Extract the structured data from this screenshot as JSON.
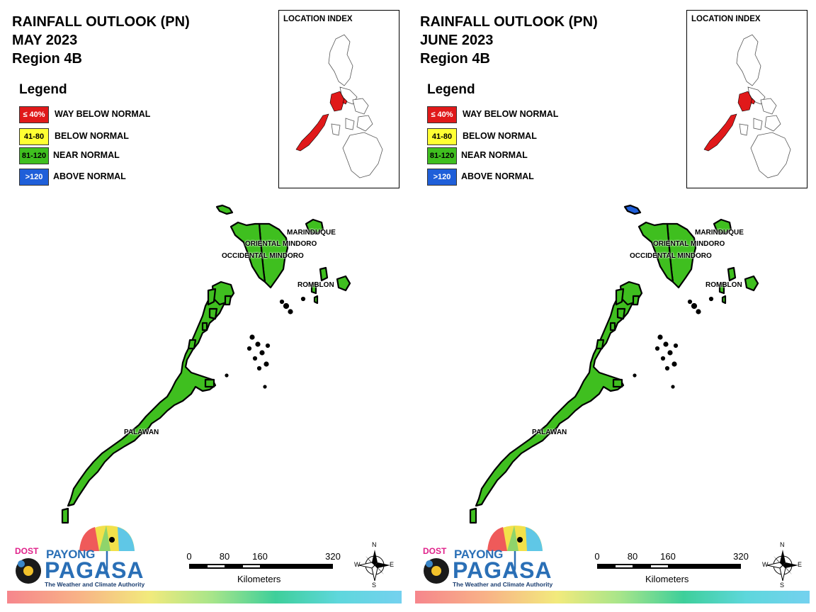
{
  "panels": [
    {
      "title_line1": "RAINFALL OUTLOOK (PN)",
      "title_line2": "MAY 2023",
      "title_line3": "Region 4B",
      "inset_title": "LOCATION INDEX",
      "provinces": {
        "marinduque": "MARINDUQUE",
        "oriental_mindoro": "ORIENTAL MINDORO",
        "occidental_mindoro": "OCCIDENTAL MINDORO",
        "romblon": "ROMBLON",
        "palawan": "PALAWAN"
      },
      "province_categories": {
        "marinduque": "near_normal",
        "oriental_mindoro": "near_normal",
        "occidental_mindoro": "near_normal",
        "romblon": "near_normal",
        "palawan": "near_normal",
        "lubang_island": "near_normal"
      }
    },
    {
      "title_line1": "RAINFALL OUTLOOK (PN)",
      "title_line2": "JUNE 2023",
      "title_line3": "Region 4B",
      "inset_title": "LOCATION INDEX",
      "provinces": {
        "marinduque": "MARINDUQUE",
        "oriental_mindoro": "ORIENTAL MINDORO",
        "occidental_mindoro": "OCCIDENTAL MINDORO",
        "romblon": "ROMBLON",
        "palawan": "PALAWAN"
      },
      "province_categories": {
        "marinduque": "near_normal",
        "oriental_mindoro": "near_normal",
        "occidental_mindoro": "near_normal",
        "romblon": "near_normal",
        "palawan": "near_normal",
        "lubang_island": "above_normal"
      }
    }
  ],
  "legend": {
    "title": "Legend",
    "items": [
      {
        "range": "≤ 40%",
        "label": "WAY BELOW NORMAL",
        "color": "#e0191a",
        "text_color": "#ffffff"
      },
      {
        "range": "41-80",
        "label": "BELOW NORMAL",
        "color": "#ffff33",
        "text_color": "#000000"
      },
      {
        "range": "81-120",
        "label": "NEAR NORMAL",
        "color": "#3fbf1f",
        "text_color": "#000000"
      },
      {
        "range": ">120",
        "label": "ABOVE NORMAL",
        "color": "#1f5fd9",
        "text_color": "#ffffff"
      }
    ]
  },
  "category_colors": {
    "way_below_normal": "#e0191a",
    "below_normal": "#ffff33",
    "near_normal": "#3fbf1f",
    "above_normal": "#1f5fd9"
  },
  "scale_bar": {
    "ticks": [
      "0",
      "80",
      "160",
      "320"
    ],
    "unit": "Kilometers"
  },
  "compass": {
    "n": "N",
    "s": "S",
    "e": "E",
    "w": "W"
  },
  "logo": {
    "dost": "DOST",
    "payong": "PAYONG",
    "pagasa": "PAGASA",
    "tagline": "The Weather and Climate Authority"
  },
  "colors": {
    "highlight_region": "#e0191a",
    "land_outline": "#000000"
  }
}
